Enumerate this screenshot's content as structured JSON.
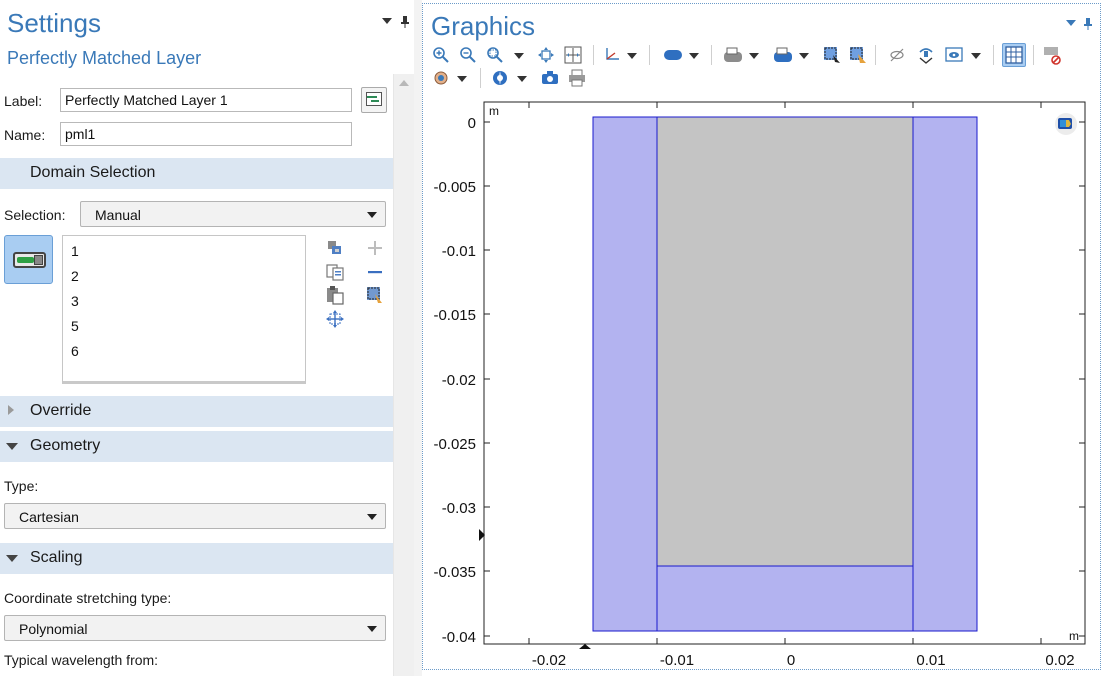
{
  "settings": {
    "title": "Settings",
    "subtitle": "Perfectly Matched Layer",
    "label_caption": "Label:",
    "label_value": "Perfectly Matched Layer 1",
    "name_caption": "Name:",
    "name_value": "pml1",
    "sections": {
      "domain_selection": "Domain Selection",
      "override": "Override",
      "geometry": "Geometry",
      "scaling": "Scaling"
    },
    "selection_caption": "Selection:",
    "selection_value": "Manual",
    "domains": [
      "1",
      "2",
      "3",
      "5",
      "6"
    ],
    "type_caption": "Type:",
    "type_value": "Cartesian",
    "stretch_caption": "Coordinate stretching type:",
    "stretch_value": "Polynomial",
    "wavelength_caption": "Typical wavelength from:"
  },
  "graphics": {
    "title": "Graphics",
    "unit_top": "m",
    "unit_right": "m",
    "y_ticks": [
      "0",
      "-0.005",
      "-0.01",
      "-0.015",
      "-0.02",
      "-0.025",
      "-0.03",
      "-0.035",
      "-0.04"
    ],
    "x_ticks": [
      "-0.02",
      "-0.01",
      "0",
      "0.01",
      "0.02"
    ],
    "icons": [
      "zoom-in-icon",
      "zoom-out-icon",
      "zoom-box-icon",
      "zoom-extents-icon",
      "zoom-selected-icon",
      "axis-orientation-icon",
      "scene-light-icon",
      "show-grid-icon",
      "transparency-icon",
      "select-box-icon",
      "lasso-select-icon",
      "hide-icon",
      "view-icon",
      "grid-toggle-icon",
      "clear-selection-icon",
      "rotate-icon",
      "render-icon",
      "camera-icon",
      "print-icon"
    ],
    "colors": {
      "pml_fill": "#b3b3f0",
      "pml_edge": "#1a1acc",
      "core_fill": "#c4c4c4",
      "title": "#3a79b8"
    }
  }
}
